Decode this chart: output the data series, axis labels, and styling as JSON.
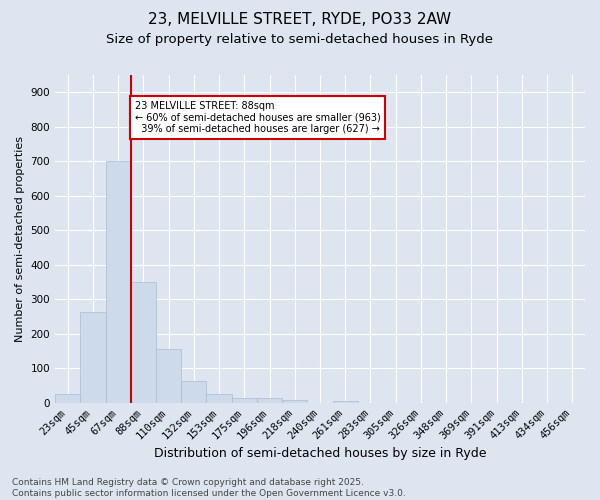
{
  "title": "23, MELVILLE STREET, RYDE, PO33 2AW",
  "subtitle": "Size of property relative to semi-detached houses in Ryde",
  "xlabel": "Distribution of semi-detached houses by size in Ryde",
  "ylabel": "Number of semi-detached properties",
  "bins": [
    "23sqm",
    "45sqm",
    "67sqm",
    "88sqm",
    "110sqm",
    "132sqm",
    "153sqm",
    "175sqm",
    "196sqm",
    "218sqm",
    "240sqm",
    "261sqm",
    "283sqm",
    "305sqm",
    "326sqm",
    "348sqm",
    "369sqm",
    "391sqm",
    "413sqm",
    "434sqm",
    "456sqm"
  ],
  "values": [
    25,
    265,
    700,
    350,
    155,
    65,
    25,
    15,
    15,
    10,
    0,
    5,
    0,
    0,
    0,
    0,
    0,
    0,
    0,
    0,
    0
  ],
  "bar_color": "#ccdaeb",
  "bar_edge_color": "#aabcce",
  "vline_color": "#cc0000",
  "annotation_text": "23 MELVILLE STREET: 88sqm\n← 60% of semi-detached houses are smaller (963)\n  39% of semi-detached houses are larger (627) →",
  "annotation_box_color": "#ffffff",
  "annotation_box_edge": "#cc0000",
  "footer_text": "Contains HM Land Registry data © Crown copyright and database right 2025.\nContains public sector information licensed under the Open Government Licence v3.0.",
  "ylim": [
    0,
    950
  ],
  "yticks": [
    0,
    100,
    200,
    300,
    400,
    500,
    600,
    700,
    800,
    900
  ],
  "background_color": "#dde6f0",
  "plot_background": "#dde6f0",
  "title_fontsize": 11,
  "subtitle_fontsize": 9.5,
  "xlabel_fontsize": 9,
  "ylabel_fontsize": 8,
  "tick_fontsize": 7.5,
  "footer_fontsize": 6.5
}
